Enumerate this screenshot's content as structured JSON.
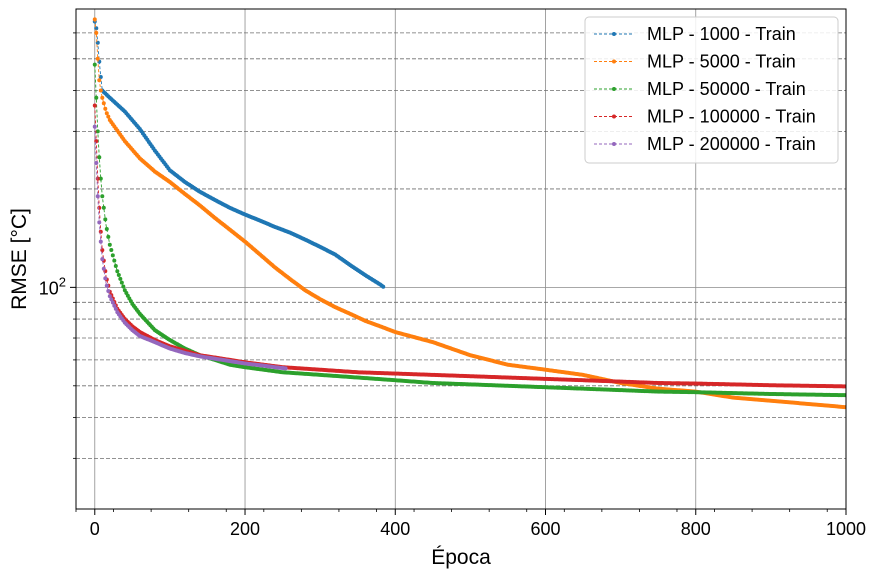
{
  "chart_data": {
    "type": "line",
    "xlabel": "Época",
    "ylabel": "RMSE [°C]",
    "xlim": [
      -25,
      1000
    ],
    "ylim": [
      21,
      710
    ],
    "y_scale": "log",
    "x_ticks": [
      0,
      200,
      400,
      600,
      800,
      1000
    ],
    "y_major_ticks": [
      {
        "value": 100,
        "label": "10",
        "exponent": "2"
      }
    ],
    "y_minor_ticks": [
      30,
      40,
      50,
      60,
      70,
      80,
      90,
      200,
      300,
      400,
      500,
      600
    ],
    "grid": true,
    "legend_position": "top-right",
    "series": [
      {
        "name": "MLP - 1000 - Train",
        "color": "#1f77b4",
        "x": [
          0,
          2,
          4,
          6,
          8,
          10,
          20,
          40,
          60,
          80,
          100,
          120,
          140,
          160,
          180,
          200,
          220,
          240,
          260,
          280,
          300,
          320,
          340,
          360,
          380,
          385
        ],
        "y": [
          650,
          620,
          560,
          490,
          440,
          400,
          380,
          345,
          305,
          262,
          228,
          210,
          196,
          185,
          175,
          167,
          160,
          153,
          147,
          140,
          133,
          126,
          117,
          109,
          102,
          100
        ]
      },
      {
        "name": "MLP - 5000 - Train",
        "color": "#ff7f0e",
        "x": [
          0,
          2,
          4,
          6,
          8,
          10,
          15,
          20,
          40,
          60,
          80,
          100,
          120,
          140,
          160,
          180,
          200,
          220,
          240,
          260,
          280,
          300,
          320,
          340,
          360,
          380,
          400,
          450,
          500,
          550,
          600,
          650,
          700,
          750,
          800,
          850,
          900,
          950,
          1000
        ],
        "y": [
          660,
          600,
          500,
          430,
          400,
          380,
          345,
          325,
          280,
          248,
          226,
          210,
          193,
          178,
          163,
          150,
          138,
          126,
          115,
          106,
          98,
          92,
          87,
          83,
          79,
          76,
          73,
          68,
          62,
          58,
          56,
          54,
          51,
          49,
          48,
          46,
          45,
          44,
          43
        ]
      },
      {
        "name": "MLP - 50000 - Train",
        "color": "#2ca02c",
        "x": [
          0,
          2,
          4,
          6,
          8,
          10,
          15,
          20,
          30,
          40,
          50,
          60,
          80,
          100,
          120,
          140,
          160,
          180,
          200,
          250,
          300,
          350,
          400,
          450,
          500,
          550,
          600,
          650,
          700,
          750,
          800,
          850,
          900,
          950,
          1000
        ],
        "y": [
          480,
          380,
          300,
          250,
          215,
          190,
          155,
          135,
          112,
          98,
          89,
          83,
          74,
          69,
          65,
          62,
          60,
          58,
          57,
          55,
          54,
          53,
          52,
          51,
          50.5,
          50,
          49.5,
          49,
          48.5,
          48,
          47.8,
          47.5,
          47.2,
          47,
          46.8
        ]
      },
      {
        "name": "MLP - 100000 - Train",
        "color": "#d62728",
        "x": [
          0,
          2,
          4,
          6,
          8,
          10,
          15,
          20,
          30,
          40,
          50,
          60,
          80,
          100,
          120,
          140,
          160,
          180,
          200,
          250,
          300,
          350,
          400,
          450,
          500,
          550,
          600,
          650,
          700,
          750,
          800,
          850,
          900,
          950,
          1000
        ],
        "y": [
          360,
          280,
          215,
          175,
          148,
          130,
          108,
          97,
          86,
          80,
          76,
          73,
          69,
          66,
          64,
          62,
          61,
          60,
          59,
          57,
          56,
          55,
          54.5,
          54,
          53.5,
          53,
          52.5,
          52,
          51.5,
          51,
          50.8,
          50.5,
          50.2,
          50,
          49.8
        ]
      },
      {
        "name": "MLP - 200000 - Train",
        "color": "#9467bd",
        "x": [
          0,
          2,
          4,
          6,
          8,
          10,
          15,
          20,
          30,
          40,
          50,
          60,
          80,
          100,
          120,
          140,
          160,
          180,
          200,
          220,
          240,
          255
        ],
        "y": [
          310,
          240,
          190,
          158,
          138,
          122,
          103,
          94,
          84,
          78,
          74,
          71,
          68,
          65,
          63,
          61.5,
          60.5,
          59.5,
          58.5,
          57.8,
          57,
          56.5
        ]
      }
    ]
  }
}
